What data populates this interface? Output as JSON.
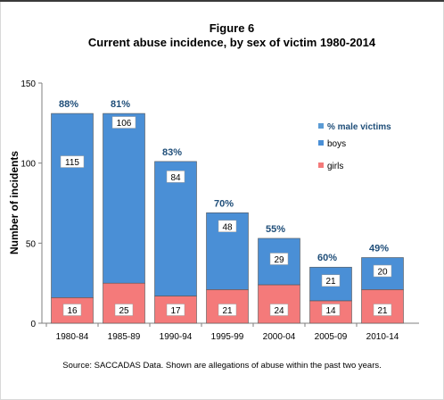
{
  "chart_data": {
    "type": "bar",
    "stacked": true,
    "title_line1": "Figure 6",
    "title": "Current abuse incidence, by sex of victim 1980-2014",
    "ylabel": "Number of incidents",
    "xlabel": "",
    "ylim": [
      0,
      150
    ],
    "yticks": [
      0,
      50,
      100,
      150
    ],
    "categories": [
      "1980-84",
      "1985-89",
      "1990-94",
      "1995-99",
      "2000-04",
      "2005-09",
      "2010-14"
    ],
    "series": [
      {
        "name": "girls",
        "values": [
          16,
          25,
          17,
          21,
          24,
          14,
          21
        ],
        "color": "#f47a7a"
      },
      {
        "name": "boys",
        "values": [
          115,
          106,
          84,
          48,
          29,
          21,
          20
        ],
        "color": "#4a8fd6"
      }
    ],
    "pct_label": "% male victims",
    "pct_values": [
      "88%",
      "81%",
      "83%",
      "70%",
      "55%",
      "60%",
      "49%"
    ],
    "pct_color": "#1f4e79",
    "legend_position": "right",
    "grid": false
  },
  "source": "Source: SACCADAS Data.  Shown are  allegations of abuse within the past two years."
}
